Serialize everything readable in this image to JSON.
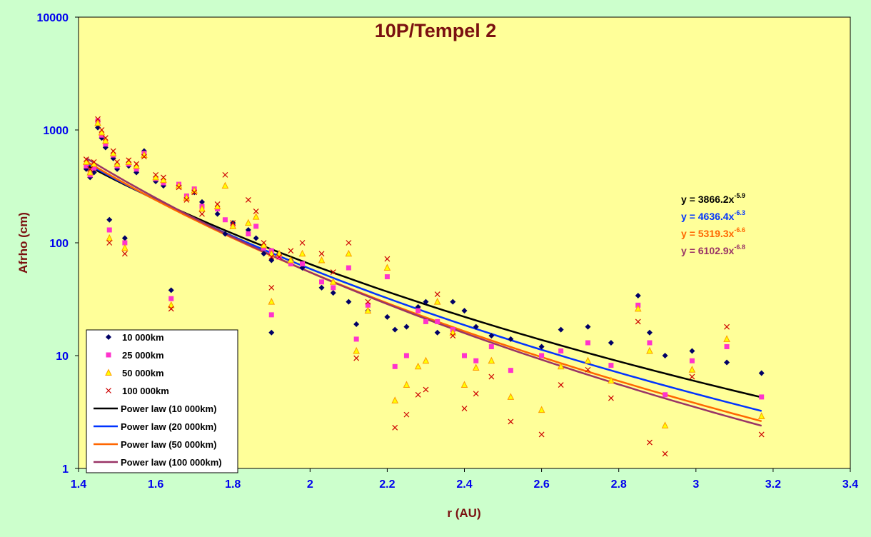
{
  "chart_data": {
    "type": "scatter",
    "title": "10P/Tempel 2",
    "xlabel": "r (AU)",
    "ylabel": "Afrho (cm)",
    "xlim": [
      1.4,
      3.4
    ],
    "ylim": [
      1,
      10000
    ],
    "y_scale": "log",
    "x_ticks": [
      "1.4",
      "1.6",
      "1.8",
      "2",
      "2.2",
      "2.4",
      "2.6",
      "2.8",
      "3",
      "3.2",
      "3.4"
    ],
    "y_ticks": [
      "1",
      "10",
      "100",
      "1000",
      "10000"
    ],
    "grid": false,
    "legend_position": "bottom-left",
    "colors": {
      "page_background": "#ccffcc",
      "plot_background": "#ffff99",
      "tick_labels": "#0000ee",
      "title": "#7a1010"
    },
    "series": [
      {
        "name": "10 000km",
        "marker": "diamond",
        "color": "#000066",
        "x": [
          1.42,
          1.43,
          1.44,
          1.45,
          1.46,
          1.47,
          1.48,
          1.49,
          1.5,
          1.52,
          1.53,
          1.55,
          1.57,
          1.6,
          1.62,
          1.64,
          1.66,
          1.68,
          1.7,
          1.72,
          1.76,
          1.78,
          1.8,
          1.84,
          1.86,
          1.88,
          1.9,
          1.9,
          1.92,
          1.95,
          1.98,
          2.03,
          2.06,
          2.1,
          2.12,
          2.15,
          2.2,
          2.22,
          2.25,
          2.28,
          2.3,
          2.33,
          2.37,
          2.4,
          2.43,
          2.47,
          2.52,
          2.6,
          2.65,
          2.72,
          2.78,
          2.85,
          2.88,
          2.92,
          2.99,
          3.08,
          3.17
        ],
        "y": [
          450,
          380,
          420,
          1050,
          850,
          700,
          160,
          560,
          450,
          110,
          480,
          420,
          650,
          350,
          320,
          38,
          320,
          250,
          280,
          230,
          180,
          120,
          150,
          130,
          110,
          80,
          70,
          16,
          80,
          70,
          60,
          40,
          36,
          30,
          19,
          25,
          22,
          17,
          18,
          27,
          30,
          16,
          30,
          25,
          18,
          15,
          14,
          12,
          17,
          18,
          13,
          34,
          16,
          10,
          11,
          8.7,
          7
        ]
      },
      {
        "name": "25 000km",
        "marker": "square",
        "color": "#ff33cc",
        "x": [
          1.42,
          1.43,
          1.44,
          1.45,
          1.46,
          1.47,
          1.48,
          1.49,
          1.5,
          1.52,
          1.53,
          1.55,
          1.57,
          1.6,
          1.62,
          1.64,
          1.66,
          1.68,
          1.7,
          1.72,
          1.76,
          1.78,
          1.8,
          1.84,
          1.86,
          1.88,
          1.9,
          1.9,
          1.92,
          1.95,
          1.98,
          2.03,
          2.06,
          2.1,
          2.12,
          2.15,
          2.2,
          2.22,
          2.25,
          2.28,
          2.3,
          2.33,
          2.37,
          2.4,
          2.43,
          2.47,
          2.52,
          2.6,
          2.65,
          2.72,
          2.78,
          2.85,
          2.88,
          2.92,
          2.99,
          3.08,
          3.17
        ],
        "y": [
          480,
          400,
          460,
          1200,
          900,
          750,
          130,
          600,
          480,
          100,
          500,
          450,
          620,
          370,
          340,
          32,
          330,
          260,
          300,
          210,
          200,
          160,
          140,
          120,
          140,
          90,
          85,
          23,
          75,
          65,
          65,
          45,
          40,
          60,
          14,
          28,
          50,
          8,
          10,
          25,
          20,
          20,
          17,
          10,
          9,
          12,
          7.4,
          10,
          11,
          13,
          8.2,
          28,
          13,
          4.5,
          9,
          12,
          4.3
        ]
      },
      {
        "name": "50 000km",
        "marker": "triangle",
        "color": "#ff9900",
        "fill": "#ffff00",
        "x": [
          1.42,
          1.43,
          1.44,
          1.45,
          1.46,
          1.47,
          1.48,
          1.49,
          1.5,
          1.52,
          1.53,
          1.55,
          1.57,
          1.6,
          1.62,
          1.64,
          1.66,
          1.68,
          1.7,
          1.72,
          1.76,
          1.78,
          1.8,
          1.84,
          1.86,
          1.88,
          1.9,
          1.9,
          1.92,
          1.95,
          1.98,
          2.03,
          2.06,
          2.1,
          2.12,
          2.15,
          2.2,
          2.22,
          2.25,
          2.28,
          2.3,
          2.33,
          2.37,
          2.4,
          2.43,
          2.47,
          2.52,
          2.6,
          2.65,
          2.72,
          2.78,
          2.85,
          2.88,
          2.92,
          2.99,
          3.08,
          3.17
        ],
        "y": [
          520,
          420,
          500,
          1150,
          950,
          800,
          110,
          620,
          500,
          90,
          520,
          480,
          600,
          380,
          360,
          28,
          320,
          250,
          290,
          200,
          210,
          320,
          140,
          150,
          170,
          95,
          80,
          30,
          80,
          70,
          80,
          70,
          45,
          80,
          11,
          25,
          60,
          4,
          5.5,
          8,
          9,
          30,
          16,
          5.5,
          7.8,
          9,
          4.3,
          3.3,
          8,
          9,
          6,
          26,
          11,
          2.4,
          7.5,
          14,
          2.9
        ]
      },
      {
        "name": "100 000km",
        "marker": "x",
        "color": "#cc0000",
        "x": [
          1.42,
          1.43,
          1.44,
          1.45,
          1.46,
          1.47,
          1.48,
          1.49,
          1.5,
          1.52,
          1.53,
          1.55,
          1.57,
          1.6,
          1.62,
          1.64,
          1.66,
          1.68,
          1.7,
          1.72,
          1.76,
          1.78,
          1.8,
          1.84,
          1.86,
          1.88,
          1.9,
          1.9,
          1.92,
          1.95,
          1.98,
          2.03,
          2.06,
          2.1,
          2.12,
          2.15,
          2.2,
          2.22,
          2.25,
          2.28,
          2.3,
          2.33,
          2.37,
          2.4,
          2.43,
          2.47,
          2.52,
          2.6,
          2.65,
          2.72,
          2.78,
          2.85,
          2.88,
          2.92,
          2.99,
          3.08,
          3.17
        ],
        "y": [
          550,
          450,
          520,
          1250,
          1000,
          850,
          100,
          650,
          520,
          80,
          540,
          500,
          580,
          400,
          380,
          26,
          310,
          240,
          280,
          180,
          220,
          400,
          150,
          240,
          190,
          100,
          75,
          40,
          75,
          85,
          100,
          80,
          55,
          100,
          9.5,
          30,
          72,
          2.3,
          3,
          4.5,
          5,
          35,
          15,
          3.4,
          4.6,
          6.5,
          2.6,
          2,
          5.5,
          7.5,
          4.2,
          20,
          1.7,
          1.35,
          6.5,
          18,
          2
        ]
      },
      {
        "name": "Power law (10 000km)",
        "type": "line",
        "color": "#000000",
        "a": 3866.2,
        "b": -5.9,
        "x_range": [
          1.42,
          3.17
        ]
      },
      {
        "name": "Power law (20 000km)",
        "type": "line",
        "color": "#0033ff",
        "a": 4636.4,
        "b": -6.3,
        "x_range": [
          1.42,
          3.17
        ]
      },
      {
        "name": "Power law (50 000km)",
        "type": "line",
        "color": "#ff6600",
        "a": 5319.3,
        "b": -6.6,
        "x_range": [
          1.42,
          3.17
        ]
      },
      {
        "name": "Power law (100 000km)",
        "type": "line",
        "color": "#993366",
        "a": 6102.9,
        "b": -6.8,
        "x_range": [
          1.42,
          3.17
        ]
      }
    ],
    "equations": [
      {
        "base": "y = 3866.2x",
        "exp": "-5.9",
        "color": "#000000"
      },
      {
        "base": "y = 4636.4x",
        "exp": "-6.3",
        "color": "#0033ff"
      },
      {
        "base": "y = 5319.3x",
        "exp": "-6.6",
        "color": "#ff6600"
      },
      {
        "base": "y = 6102.9x",
        "exp": "-6.8",
        "color": "#993366"
      }
    ]
  }
}
